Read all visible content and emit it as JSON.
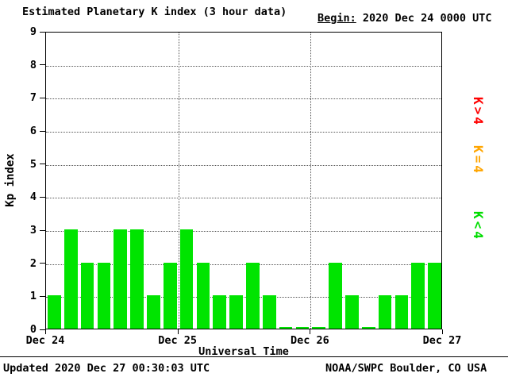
{
  "header": {
    "begin_label": "Begin:",
    "begin_value": "2020 Dec 24 0000 UTC"
  },
  "chart_data": {
    "type": "bar",
    "title": "Estimated Planetary K index (3 hour data)",
    "xlabel": "Universal Time",
    "ylabel": "Kp index",
    "begin": "2020 Dec 24 0000 UTC",
    "interval_hours": 3,
    "ylim": [
      0,
      9
    ],
    "yticks": [
      0,
      1,
      2,
      3,
      4,
      5,
      6,
      7,
      8,
      9
    ],
    "x_tick_labels": [
      "Dec 24",
      "Dec 25",
      "Dec 26",
      "Dec 27"
    ],
    "grid": "dotted",
    "legend_position": "right",
    "bar_color": "#00e400",
    "values": [
      1,
      3,
      2,
      2,
      3,
      3,
      1,
      2,
      3,
      2,
      1,
      1,
      2,
      1,
      0,
      0,
      0,
      2,
      1,
      0,
      1,
      1,
      2,
      2
    ],
    "legend": [
      {
        "label": "K>4",
        "color": "#ff0000"
      },
      {
        "label": "K=4",
        "color": "#ffa500"
      },
      {
        "label": "K<4",
        "color": "#00dd00"
      }
    ]
  },
  "footer": {
    "updated": "Updated 2020 Dec 27 00:30:03 UTC",
    "credit": "NOAA/SWPC Boulder, CO USA"
  }
}
